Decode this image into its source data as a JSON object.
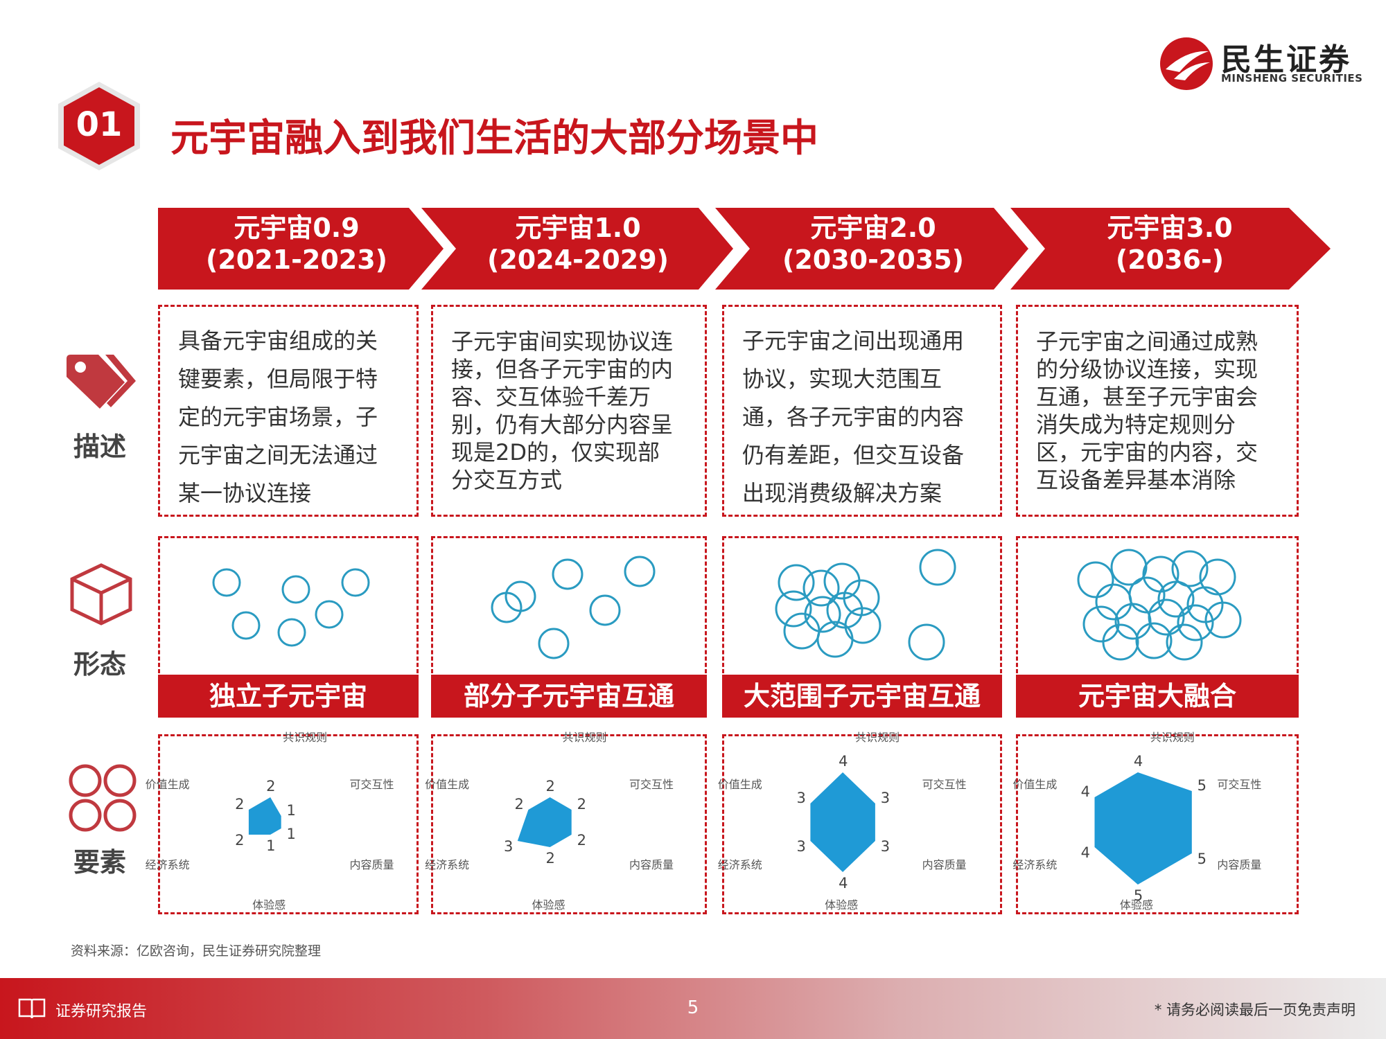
{
  "logo": {
    "name_cn": "民生证券",
    "name_en": "MINSHENG SECURITIES"
  },
  "title": {
    "number": "01",
    "text": "元宇宙融入到我们生活的大部分场景中"
  },
  "stages": [
    {
      "name": "元宇宙0.9",
      "years": "(2021-2023)"
    },
    {
      "name": "元宇宙1.0",
      "years": "(2024-2029)"
    },
    {
      "name": "元宇宙2.0",
      "years": "(2030-2035)"
    },
    {
      "name": "元宇宙3.0",
      "years": "(2036-)"
    }
  ],
  "row_labels": {
    "description": "描述",
    "form": "形态",
    "elements": "要素"
  },
  "descriptions": [
    [
      "具备元宇宙组成的关",
      "键要素，但局限于特",
      "定的元宇宙场景，子",
      "元宇宙之间无法通过",
      "某一协议连接"
    ],
    [
      "子元宇宙间实现协议连",
      "接，但各子元宇宙的内",
      "容、交互体验千差万",
      "别，仍有大部分内容呈",
      "现是2D的，仅实现部",
      "分交互方式"
    ],
    [
      "子元宇宙之间出现通用",
      "协议，实现大范围互",
      "通，各子元宇宙的内容",
      "仍有差距，但交互设备",
      "出现消费级解决方案"
    ],
    [
      "子元宇宙之间通过成熟",
      "的分级协议连接，实现",
      "互通，甚至子元宇宙会",
      "消失成为特定规则分",
      "区，元宇宙的内容，交",
      "互设备差异基本消除"
    ]
  ],
  "forms": [
    "独立子元宇宙",
    "部分子元宇宙互通",
    "大范围子元宇宙互通",
    "元宇宙大融合"
  ],
  "radar_axes": [
    "共识规则",
    "可交互性",
    "内容质量",
    "体验感",
    "经济系统",
    "价值生成"
  ],
  "radar_values": [
    [
      2,
      1,
      1,
      1,
      2,
      2
    ],
    [
      2,
      2,
      2,
      2,
      3,
      2
    ],
    [
      4,
      3,
      3,
      4,
      3,
      3
    ],
    [
      4,
      5,
      5,
      5,
      4,
      4
    ]
  ],
  "radar_max": 5,
  "source": "资料来源：亿欧咨询，民生证券研究院整理",
  "footer": {
    "label": "证券研究报告",
    "page": "5",
    "disclaimer": "* 请务必阅读最后一页免责声明"
  },
  "colors": {
    "brand_red": "#c8161d",
    "circle_blue": "#2a9bc1",
    "radar_fill": "#1f9ad6"
  },
  "icons": {
    "logo": "minsheng-logo-icon",
    "description": "tag-icon",
    "form": "cube-icon",
    "elements": "clover-icon",
    "footer": "book-icon"
  }
}
